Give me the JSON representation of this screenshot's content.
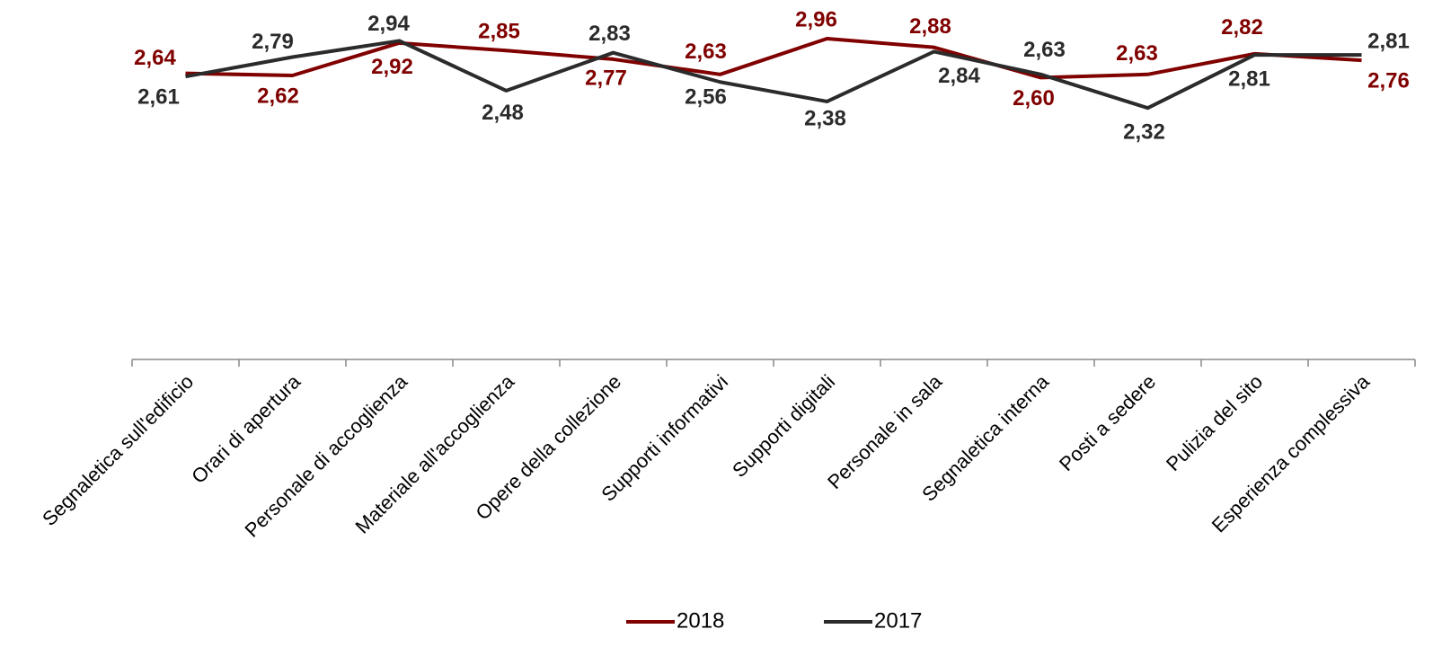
{
  "chart_data": {
    "type": "line",
    "categories": [
      "Segnaletica sull'edificio",
      "Orari di apertura",
      "Personale di accoglienza",
      "Materiale all'accoglienza",
      "Opere della collezione",
      "Supporti informativi",
      "Supporti digitali",
      "Personale in sala",
      "Segnaletica interna",
      "Posti a sedere",
      "Pulizia del sito",
      "Esperienza complessiva"
    ],
    "series": [
      {
        "name": "2018",
        "color": "#800000",
        "values": [
          2.64,
          2.62,
          2.92,
          2.85,
          2.77,
          2.63,
          2.96,
          2.88,
          2.6,
          2.63,
          2.82,
          2.76
        ],
        "value_labels": [
          "2,64",
          "2,62",
          "2,92",
          "2,85",
          "2,77",
          "2,63",
          "2,96",
          "2,88",
          "2,60",
          "2,63",
          "2,82",
          "2,76"
        ]
      },
      {
        "name": "2017",
        "color": "#2b2b2b",
        "values": [
          2.61,
          2.79,
          2.94,
          2.48,
          2.83,
          2.56,
          2.38,
          2.84,
          2.63,
          2.32,
          2.81,
          2.81
        ],
        "value_labels": [
          "2,61",
          "2,79",
          "2,94",
          "2,48",
          "2,83",
          "2,56",
          "2,38",
          "2,84",
          "2,63",
          "2,32",
          "2,81",
          "2,81"
        ]
      }
    ],
    "ylim": [
      0,
      3.3
    ],
    "legend": "bottom"
  }
}
